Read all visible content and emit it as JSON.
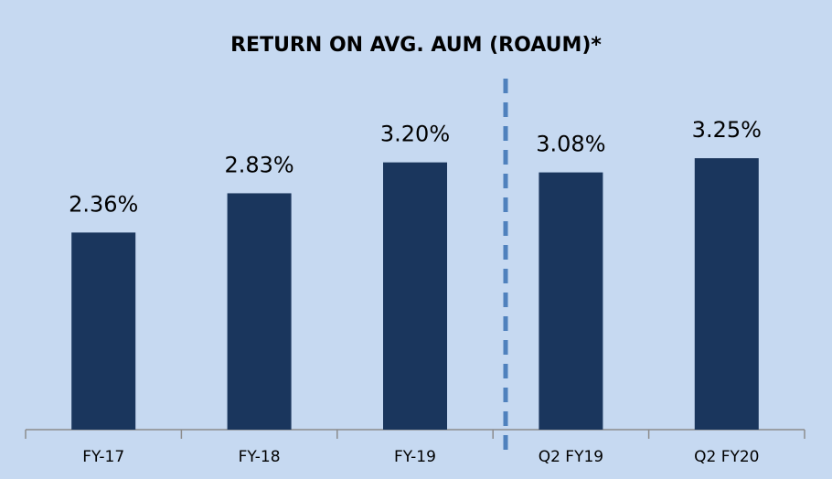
{
  "chart_data": {
    "type": "bar",
    "title": "RETURN ON AVG. AUM (ROAUM)*",
    "categories": [
      "FY-17",
      "FY-18",
      "FY-19",
      "Q2 FY19",
      "Q2 FY20"
    ],
    "values": [
      2.36,
      2.83,
      3.2,
      3.08,
      3.25
    ],
    "value_labels": [
      "2.36%",
      "2.83%",
      "3.20%",
      "3.08%",
      "3.25%"
    ],
    "color": "#1a365d",
    "ylim": [
      0,
      4.4
    ]
  }
}
